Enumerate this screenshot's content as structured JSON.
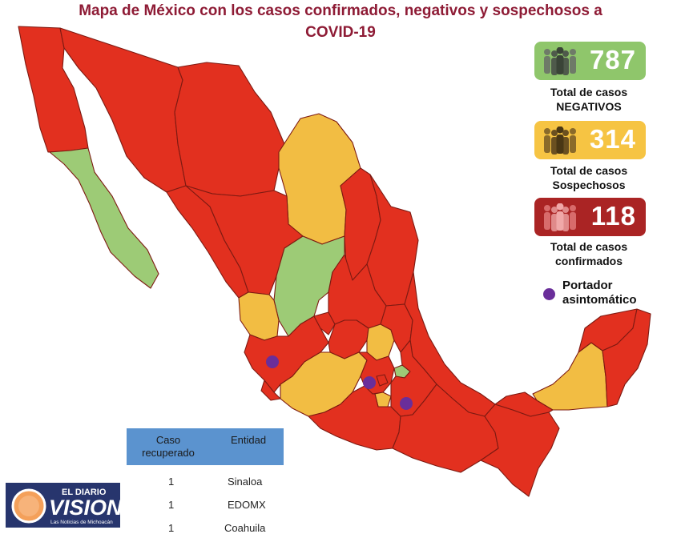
{
  "title": {
    "line1": "Mapa de México con los casos confirmados, negativos y sospechosos a",
    "line2": "COVID-19"
  },
  "colors": {
    "confirmed": "#e2301f",
    "suspected": "#f2bd43",
    "negative": "#9dcb76",
    "badge_negative": "#8fc66b",
    "badge_suspected": "#f6c443",
    "badge_confirmed": "#aa2424",
    "asymptomatic": "#6a2e9a",
    "table_header": "#5b93cf",
    "title": "#8e1b35"
  },
  "stats": {
    "negative": {
      "value": "787",
      "label_line1": "Total de casos",
      "label_line2": "NEGATIVOS",
      "icon": "people-group-icon"
    },
    "suspected": {
      "value": "314",
      "label_line1": "Total de casos",
      "label_line2": "Sospechosos",
      "icon": "people-group-icon"
    },
    "confirmed": {
      "value": "118",
      "label_line1": "Total de casos",
      "label_line2": "confirmados",
      "icon": "people-group-icon"
    }
  },
  "legend": {
    "asymptomatic_line1": "Portador",
    "asymptomatic_line2": "asintomático"
  },
  "table": {
    "headers": {
      "col1_line1": "Caso",
      "col1_line2": "recuperado",
      "col2": "Entidad"
    },
    "rows": [
      {
        "count": "1",
        "entity": "Sinaloa"
      },
      {
        "count": "1",
        "entity": "EDOMX"
      },
      {
        "count": "1",
        "entity": "Coahuila"
      }
    ]
  },
  "logo": {
    "line1": "EL DIARIO",
    "line2": "VISION",
    "line3": "Las Noticias de Michoacán"
  },
  "regions": [
    {
      "name": "Baja California",
      "status": "confirmed"
    },
    {
      "name": "Baja California Sur",
      "status": "negative"
    },
    {
      "name": "Sonora",
      "status": "confirmed"
    },
    {
      "name": "Chihuahua",
      "status": "confirmed"
    },
    {
      "name": "Coahuila",
      "status": "suspected"
    },
    {
      "name": "Nuevo León",
      "status": "confirmed"
    },
    {
      "name": "Tamaulipas",
      "status": "confirmed"
    },
    {
      "name": "Sinaloa",
      "status": "confirmed"
    },
    {
      "name": "Durango",
      "status": "confirmed"
    },
    {
      "name": "Zacatecas",
      "status": "negative"
    },
    {
      "name": "Nayarit",
      "status": "suspected"
    },
    {
      "name": "Jalisco",
      "status": "confirmed"
    },
    {
      "name": "Aguascalientes",
      "status": "confirmed"
    },
    {
      "name": "San Luis Potosí",
      "status": "confirmed"
    },
    {
      "name": "Guanajuato",
      "status": "confirmed"
    },
    {
      "name": "Querétaro",
      "status": "suspected"
    },
    {
      "name": "Hidalgo",
      "status": "confirmed"
    },
    {
      "name": "Colima",
      "status": "confirmed"
    },
    {
      "name": "Michoacán",
      "status": "suspected"
    },
    {
      "name": "Estado de México",
      "status": "confirmed"
    },
    {
      "name": "Ciudad de México",
      "status": "confirmed"
    },
    {
      "name": "Morelos",
      "status": "suspected"
    },
    {
      "name": "Tlaxcala",
      "status": "negative"
    },
    {
      "name": "Puebla",
      "status": "confirmed"
    },
    {
      "name": "Veracruz",
      "status": "confirmed"
    },
    {
      "name": "Guerrero",
      "status": "confirmed"
    },
    {
      "name": "Oaxaca",
      "status": "confirmed"
    },
    {
      "name": "Chiapas",
      "status": "confirmed"
    },
    {
      "name": "Tabasco",
      "status": "confirmed"
    },
    {
      "name": "Campeche",
      "status": "suspected"
    },
    {
      "name": "Yucatán",
      "status": "confirmed"
    },
    {
      "name": "Quintana Roo",
      "status": "confirmed"
    }
  ]
}
